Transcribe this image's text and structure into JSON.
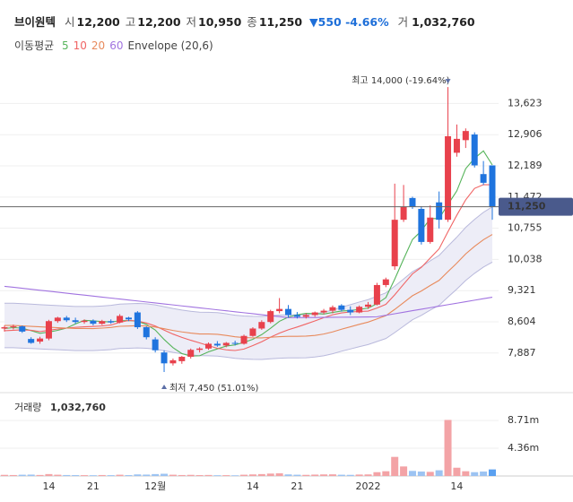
{
  "chart_data": {
    "type": "candlestick",
    "header": {
      "name": "브이원텍",
      "items": [
        {
          "key": "시",
          "value": "12,200"
        },
        {
          "key": "고",
          "value": "12,200"
        },
        {
          "key": "저",
          "value": "10,950"
        },
        {
          "key": "종",
          "value": "11,250"
        }
      ],
      "change": "▼550 -4.66%",
      "volume_key": "거",
      "volume_value": "1,032,760"
    },
    "legend_title": "이동평균",
    "envelope": {
      "label": "Envelope (20,6)",
      "percent": 6,
      "color": "#b9b9dc",
      "fill": "#ededf7"
    },
    "categories": [
      null,
      null,
      null,
      null,
      null,
      "14",
      null,
      null,
      null,
      null,
      "21",
      null,
      null,
      null,
      null,
      null,
      null,
      "12월",
      null,
      null,
      null,
      null,
      null,
      null,
      null,
      null,
      null,
      null,
      "14",
      null,
      null,
      null,
      null,
      "21",
      null,
      null,
      null,
      null,
      null,
      null,
      null,
      "2022",
      null,
      null,
      null,
      null,
      null,
      null,
      null,
      null,
      null,
      "14",
      null,
      null,
      null,
      null
    ],
    "open": [
      8450,
      8480,
      8500,
      8210,
      8150,
      8220,
      8620,
      8700,
      8640,
      8600,
      8630,
      8560,
      8620,
      8590,
      8700,
      8820,
      8480,
      8200,
      7900,
      7650,
      7700,
      7800,
      7960,
      7990,
      8100,
      8060,
      8120,
      8100,
      8280,
      8450,
      8600,
      8850,
      8900,
      8760,
      8720,
      8760,
      8820,
      8860,
      8980,
      8880,
      8820,
      8950,
      9000,
      9450,
      9880,
      10950,
      11450,
      11200,
      10440,
      11350,
      10950,
      12490,
      12780,
      12910,
      12000,
      12200
    ],
    "high": [
      8520,
      8540,
      8520,
      8250,
      8260,
      8650,
      8720,
      8740,
      8700,
      8660,
      8660,
      8650,
      8660,
      8780,
      8720,
      8850,
      8500,
      8250,
      7950,
      7760,
      7820,
      7990,
      8020,
      8130,
      8160,
      8140,
      8170,
      8310,
      8480,
      8640,
      8880,
      9150,
      8990,
      8830,
      8800,
      8840,
      8900,
      8980,
      9010,
      8960,
      8980,
      9060,
      9500,
      9620,
      11780,
      11750,
      11480,
      11260,
      11280,
      11600,
      14000,
      13140,
      13050,
      12960,
      12300,
      12200
    ],
    "low": [
      8380,
      8430,
      8350,
      8100,
      8100,
      8180,
      8580,
      8600,
      8560,
      8560,
      8520,
      8530,
      8560,
      8570,
      8620,
      8440,
      8200,
      7900,
      7450,
      7600,
      7640,
      7760,
      7900,
      7960,
      8030,
      8020,
      8060,
      8080,
      8260,
      8420,
      8570,
      8800,
      8700,
      8680,
      8680,
      8720,
      8780,
      8800,
      8840,
      8760,
      8800,
      8900,
      8980,
      9400,
      9800,
      10900,
      11200,
      10380,
      10400,
      10750,
      10900,
      12400,
      12600,
      12150,
      11750,
      10950
    ],
    "close": [
      8480,
      8500,
      8380,
      8120,
      8220,
      8620,
      8700,
      8640,
      8600,
      8630,
      8560,
      8620,
      8590,
      8740,
      8660,
      8480,
      8250,
      7950,
      7650,
      7720,
      7800,
      7960,
      7990,
      8100,
      8060,
      8120,
      8100,
      8280,
      8450,
      8600,
      8850,
      8900,
      8760,
      8720,
      8760,
      8820,
      8860,
      8940,
      8880,
      8820,
      8950,
      9000,
      9450,
      9580,
      10950,
      11250,
      11250,
      10440,
      11000,
      10950,
      12870,
      12810,
      12990,
      12200,
      11800,
      11250
    ],
    "up_color": "#e8414c",
    "down_color": "#1f74de",
    "moving_averages": [
      {
        "name": "5",
        "color": "#56b45a",
        "values": [
          8450,
          8470,
          8460,
          8400,
          8340,
          8368,
          8408,
          8460,
          8556,
          8638,
          8626,
          8610,
          8600,
          8628,
          8634,
          8618,
          8544,
          8416,
          8198,
          8010,
          7874,
          7816,
          7824,
          7914,
          7982,
          8046,
          8074,
          8132,
          8202,
          8310,
          8456,
          8616,
          8712,
          8766,
          8798,
          8792,
          8784,
          8820,
          8852,
          8864,
          8890,
          8918,
          9020,
          9160,
          9586,
          10046,
          10496,
          10694,
          10978,
          10978,
          11302,
          11614,
          12124,
          12364,
          12534,
          12210
        ]
      },
      {
        "name": "10",
        "color": "#f06464",
        "values": [
          8400,
          8410,
          8420,
          8410,
          8380,
          8409,
          8439,
          8460,
          8478,
          8489,
          8497,
          8509,
          8530,
          8592,
          8636,
          8622,
          8577,
          8508,
          8413,
          8322,
          8246,
          8180,
          8120,
          8056,
          7996,
          7960,
          7945,
          7978,
          8058,
          8146,
          8251,
          8345,
          8422,
          8484,
          8554,
          8624,
          8700,
          8766,
          8809,
          8831,
          8841,
          8851,
          8920,
          9006,
          9225,
          9468,
          9707,
          9857,
          10069,
          10282,
          10674,
          11055,
          11409,
          11671,
          11756,
          11756
        ]
      },
      {
        "name": "20",
        "color": "#e88a5c",
        "values": [
          8520,
          8520,
          8510,
          8500,
          8490,
          8480,
          8470,
          8460,
          8450,
          8450,
          8449,
          8460,
          8475,
          8501,
          8508,
          8516,
          8508,
          8484,
          8446,
          8406,
          8372,
          8345,
          8325,
          8324,
          8316,
          8291,
          8261,
          8243,
          8236,
          8234,
          8249,
          8263,
          8271,
          8270,
          8275,
          8292,
          8323,
          8372,
          8434,
          8489,
          8546,
          8598,
          8671,
          8745,
          8890,
          9046,
          9204,
          9312,
          9439,
          9557,
          9758,
          9953,
          10165,
          10339,
          10491,
          10612
        ]
      },
      {
        "name": "60",
        "color": "#a173e0",
        "values": [
          9420,
          9398,
          9375,
          9353,
          9330,
          9308,
          9285,
          9263,
          9240,
          9218,
          9195,
          9173,
          9150,
          9128,
          9105,
          9083,
          9060,
          9038,
          9015,
          8993,
          8970,
          8948,
          8925,
          8903,
          8880,
          8858,
          8835,
          8813,
          8790,
          8768,
          8745,
          8723,
          8700,
          8700,
          8702,
          8704,
          8706,
          8708,
          8710,
          8712,
          8714,
          8716,
          8720,
          8755,
          8790,
          8825,
          8860,
          8894,
          8929,
          8963,
          8998,
          9032,
          9067,
          9101,
          9136,
          9170
        ]
      }
    ],
    "ylim": [
      7100,
      14250
    ],
    "yticks": [
      {
        "value": 13623,
        "label": "13,623"
      },
      {
        "value": 12906,
        "label": "12,906"
      },
      {
        "value": 12189,
        "label": "12,189"
      },
      {
        "value": 11472,
        "label": "11,472"
      },
      {
        "value": 10755,
        "label": "10,755"
      },
      {
        "value": 10038,
        "label": "10,038"
      },
      {
        "value": 9321,
        "label": "9,321"
      },
      {
        "value": 8604,
        "label": "8,604"
      },
      {
        "value": 7887,
        "label": "7,887"
      }
    ],
    "last_price_label": "11,250",
    "high_annotation": "최고 14,000 (-19.64%)",
    "low_annotation": "최저 7,450 (51.01%)",
    "volume": {
      "title": "거래량",
      "last_label": "1,032,760",
      "values": [
        180000,
        150000,
        200000,
        220000,
        160000,
        300000,
        200000,
        150000,
        140000,
        130000,
        120000,
        150000,
        130000,
        200000,
        140000,
        250000,
        220000,
        300000,
        350000,
        200000,
        150000,
        180000,
        140000,
        160000,
        120000,
        130000,
        110000,
        200000,
        250000,
        300000,
        380000,
        420000,
        250000,
        200000,
        180000,
        220000,
        250000,
        260000,
        200000,
        180000,
        230000,
        250000,
        600000,
        750000,
        3000000,
        1500000,
        800000,
        700000,
        650000,
        900000,
        8800000,
        1300000,
        750000,
        600000,
        700000,
        1032760
      ],
      "up_color": "#f3a3a6",
      "down_color": "#9cc3f2",
      "last_color": "#5aa0f0",
      "ylim": [
        0,
        12100000
      ],
      "yticks": [
        {
          "value": 8710000,
          "label": "8.71m"
        },
        {
          "value": 4360000,
          "label": "4.36m"
        }
      ]
    },
    "grid": true
  }
}
